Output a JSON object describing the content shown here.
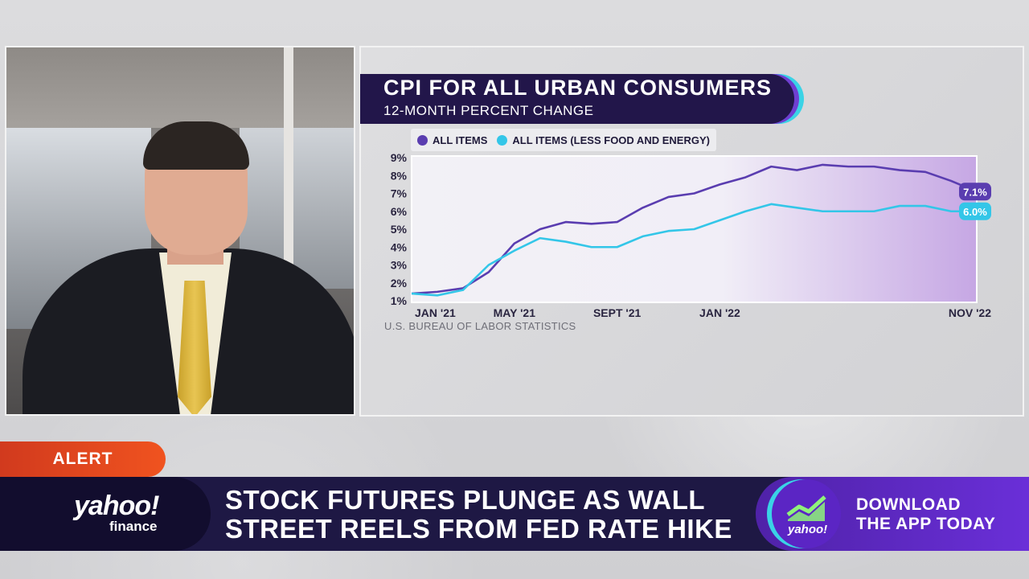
{
  "alert_label": "ALERT",
  "logo": {
    "yahoo": "yahoo!",
    "finance": "finance",
    "app_icon_text": "yahoo!"
  },
  "headline": {
    "line1": "STOCK FUTURES PLUNGE AS WALL",
    "line2": "STREET REELS FROM FED RATE HIKE"
  },
  "app_promo": {
    "line1": "DOWNLOAD",
    "line2": "THE APP TODAY"
  },
  "source": "U.S. BUREAU OF LABOR STATISTICS",
  "colors": {
    "all_items": "#5a3db0",
    "core": "#33c6e8",
    "banner": "#1e1844",
    "alert": "#e8491f"
  },
  "chart_data": {
    "type": "line",
    "title": "CPI FOR ALL URBAN CONSUMERS",
    "subtitle": "12-MONTH PERCENT CHANGE",
    "x_tick_labels": [
      "JAN '21",
      "MAY '21",
      "SEPT '21",
      "JAN '22",
      "NOV '22"
    ],
    "x_tick_months": [
      0,
      4,
      8,
      12,
      22
    ],
    "y_tick_labels": [
      "9%",
      "8%",
      "7%",
      "6%",
      "5%",
      "4%",
      "3%",
      "2%",
      "1%"
    ],
    "ylim": [
      1,
      9
    ],
    "xlim": [
      0,
      22
    ],
    "series": [
      {
        "name": "ALL ITEMS",
        "color": "#5a3db0",
        "end_label": "7.1%",
        "points": [
          [
            0,
            1.4
          ],
          [
            1,
            1.5
          ],
          [
            2,
            1.7
          ],
          [
            3,
            2.6
          ],
          [
            4,
            4.2
          ],
          [
            5,
            5.0
          ],
          [
            6,
            5.4
          ],
          [
            7,
            5.3
          ],
          [
            8,
            5.4
          ],
          [
            9,
            6.2
          ],
          [
            10,
            6.8
          ],
          [
            11,
            7.0
          ],
          [
            12,
            7.5
          ],
          [
            13,
            7.9
          ],
          [
            14,
            8.5
          ],
          [
            15,
            8.3
          ],
          [
            16,
            8.6
          ],
          [
            17,
            8.5
          ],
          [
            18,
            8.5
          ],
          [
            19,
            8.3
          ],
          [
            20,
            8.2
          ],
          [
            21,
            7.7
          ],
          [
            22,
            7.1
          ]
        ]
      },
      {
        "name": "ALL ITEMS (LESS FOOD AND ENERGY)",
        "color": "#33c6e8",
        "end_label": "6.0%",
        "points": [
          [
            0,
            1.4
          ],
          [
            1,
            1.3
          ],
          [
            2,
            1.6
          ],
          [
            3,
            3.0
          ],
          [
            4,
            3.8
          ],
          [
            5,
            4.5
          ],
          [
            6,
            4.3
          ],
          [
            7,
            4.0
          ],
          [
            8,
            4.0
          ],
          [
            9,
            4.6
          ],
          [
            10,
            4.9
          ],
          [
            11,
            5.0
          ],
          [
            12,
            5.5
          ],
          [
            13,
            6.0
          ],
          [
            14,
            6.4
          ],
          [
            15,
            6.2
          ],
          [
            16,
            6.0
          ],
          [
            17,
            6.0
          ],
          [
            18,
            6.0
          ],
          [
            19,
            6.3
          ],
          [
            20,
            6.3
          ],
          [
            21,
            6.0
          ],
          [
            22,
            6.0
          ]
        ]
      }
    ]
  }
}
